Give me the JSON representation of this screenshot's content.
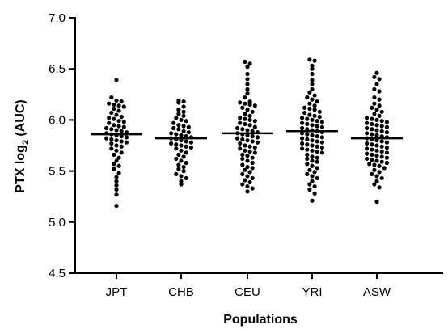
{
  "chart_data": {
    "type": "scatter",
    "subtype": "dot-plot",
    "title": "",
    "xlabel": "Populations",
    "ylabel": {
      "base": "PTX log",
      "subscript": "2",
      "suffix": " (AUC)"
    },
    "ylim": [
      4.5,
      7.0
    ],
    "yticks": [
      4.5,
      5.0,
      5.5,
      6.0,
      6.5,
      7.0
    ],
    "ytick_labels": [
      "4.5",
      "5.0",
      "5.5",
      "6.0",
      "6.5",
      "7.0"
    ],
    "grid": false,
    "legend": "none",
    "point_color": "#000000",
    "categories": [
      "JPT",
      "CHB",
      "CEU",
      "YRI",
      "ASW"
    ],
    "series": [
      {
        "category": "JPT",
        "mean": 5.86,
        "values": [
          6.39,
          6.22,
          6.19,
          6.18,
          6.16,
          6.15,
          6.14,
          6.13,
          6.11,
          6.09,
          6.07,
          6.05,
          6.03,
          6.02,
          6.01,
          5.99,
          5.98,
          5.97,
          5.95,
          5.94,
          5.93,
          5.92,
          5.91,
          5.9,
          5.89,
          5.88,
          5.87,
          5.86,
          5.85,
          5.84,
          5.83,
          5.82,
          5.81,
          5.8,
          5.79,
          5.78,
          5.77,
          5.75,
          5.74,
          5.72,
          5.7,
          5.68,
          5.66,
          5.63,
          5.6,
          5.57,
          5.55,
          5.52,
          5.48,
          5.44,
          5.4,
          5.36,
          5.32,
          5.27,
          5.16
        ]
      },
      {
        "category": "CHB",
        "mean": 5.82,
        "values": [
          6.19,
          6.18,
          6.17,
          6.13,
          6.1,
          6.08,
          6.06,
          6.04,
          6.02,
          6.0,
          5.99,
          5.97,
          5.95,
          5.94,
          5.93,
          5.92,
          5.91,
          5.89,
          5.88,
          5.87,
          5.86,
          5.85,
          5.84,
          5.83,
          5.82,
          5.81,
          5.8,
          5.79,
          5.78,
          5.77,
          5.76,
          5.75,
          5.74,
          5.73,
          5.72,
          5.7,
          5.68,
          5.66,
          5.64,
          5.62,
          5.6,
          5.58,
          5.56,
          5.54,
          5.52,
          5.5,
          5.47,
          5.45,
          5.43,
          5.4,
          5.37
        ]
      },
      {
        "category": "CEU",
        "mean": 5.87,
        "values": [
          6.57,
          6.55,
          6.52,
          6.45,
          6.4,
          6.35,
          6.3,
          6.26,
          6.22,
          6.18,
          6.17,
          6.16,
          6.15,
          6.14,
          6.12,
          6.1,
          6.08,
          6.06,
          6.04,
          6.02,
          6.01,
          6.0,
          5.99,
          5.97,
          5.96,
          5.95,
          5.93,
          5.92,
          5.91,
          5.9,
          5.89,
          5.88,
          5.87,
          5.86,
          5.85,
          5.84,
          5.83,
          5.82,
          5.81,
          5.8,
          5.79,
          5.78,
          5.77,
          5.75,
          5.74,
          5.73,
          5.72,
          5.7,
          5.69,
          5.68,
          5.66,
          5.65,
          5.63,
          5.62,
          5.6,
          5.58,
          5.56,
          5.54,
          5.53,
          5.51,
          5.49,
          5.47,
          5.45,
          5.43,
          5.41,
          5.39,
          5.37,
          5.35,
          5.33,
          5.3
        ]
      },
      {
        "category": "YRI",
        "mean": 5.89,
        "values": [
          6.59,
          6.58,
          6.53,
          6.5,
          6.45,
          6.39,
          6.35,
          6.3,
          6.27,
          6.24,
          6.22,
          6.2,
          6.18,
          6.16,
          6.14,
          6.12,
          6.11,
          6.1,
          6.08,
          6.07,
          6.05,
          6.04,
          6.03,
          6.02,
          6.01,
          6.0,
          5.99,
          5.98,
          5.97,
          5.96,
          5.95,
          5.94,
          5.93,
          5.92,
          5.91,
          5.9,
          5.89,
          5.88,
          5.87,
          5.86,
          5.85,
          5.84,
          5.83,
          5.82,
          5.81,
          5.8,
          5.79,
          5.78,
          5.77,
          5.76,
          5.75,
          5.74,
          5.73,
          5.72,
          5.71,
          5.7,
          5.69,
          5.68,
          5.66,
          5.64,
          5.63,
          5.62,
          5.6,
          5.59,
          5.57,
          5.55,
          5.53,
          5.51,
          5.49,
          5.47,
          5.45,
          5.43,
          5.4,
          5.37,
          5.35,
          5.32,
          5.28,
          5.21
        ]
      },
      {
        "category": "ASW",
        "mean": 5.82,
        "values": [
          6.46,
          6.42,
          6.4,
          6.35,
          6.3,
          6.28,
          6.22,
          6.2,
          6.16,
          6.14,
          6.12,
          6.1,
          6.08,
          6.06,
          6.04,
          6.02,
          6.01,
          6.0,
          5.99,
          5.98,
          5.97,
          5.96,
          5.95,
          5.94,
          5.93,
          5.92,
          5.91,
          5.9,
          5.89,
          5.88,
          5.87,
          5.86,
          5.85,
          5.84,
          5.83,
          5.82,
          5.81,
          5.8,
          5.79,
          5.78,
          5.77,
          5.76,
          5.75,
          5.74,
          5.73,
          5.72,
          5.71,
          5.7,
          5.69,
          5.68,
          5.67,
          5.66,
          5.65,
          5.64,
          5.63,
          5.62,
          5.61,
          5.6,
          5.59,
          5.58,
          5.57,
          5.56,
          5.55,
          5.53,
          5.51,
          5.49,
          5.47,
          5.45,
          5.43,
          5.4,
          5.37,
          5.34,
          5.2
        ]
      }
    ]
  }
}
